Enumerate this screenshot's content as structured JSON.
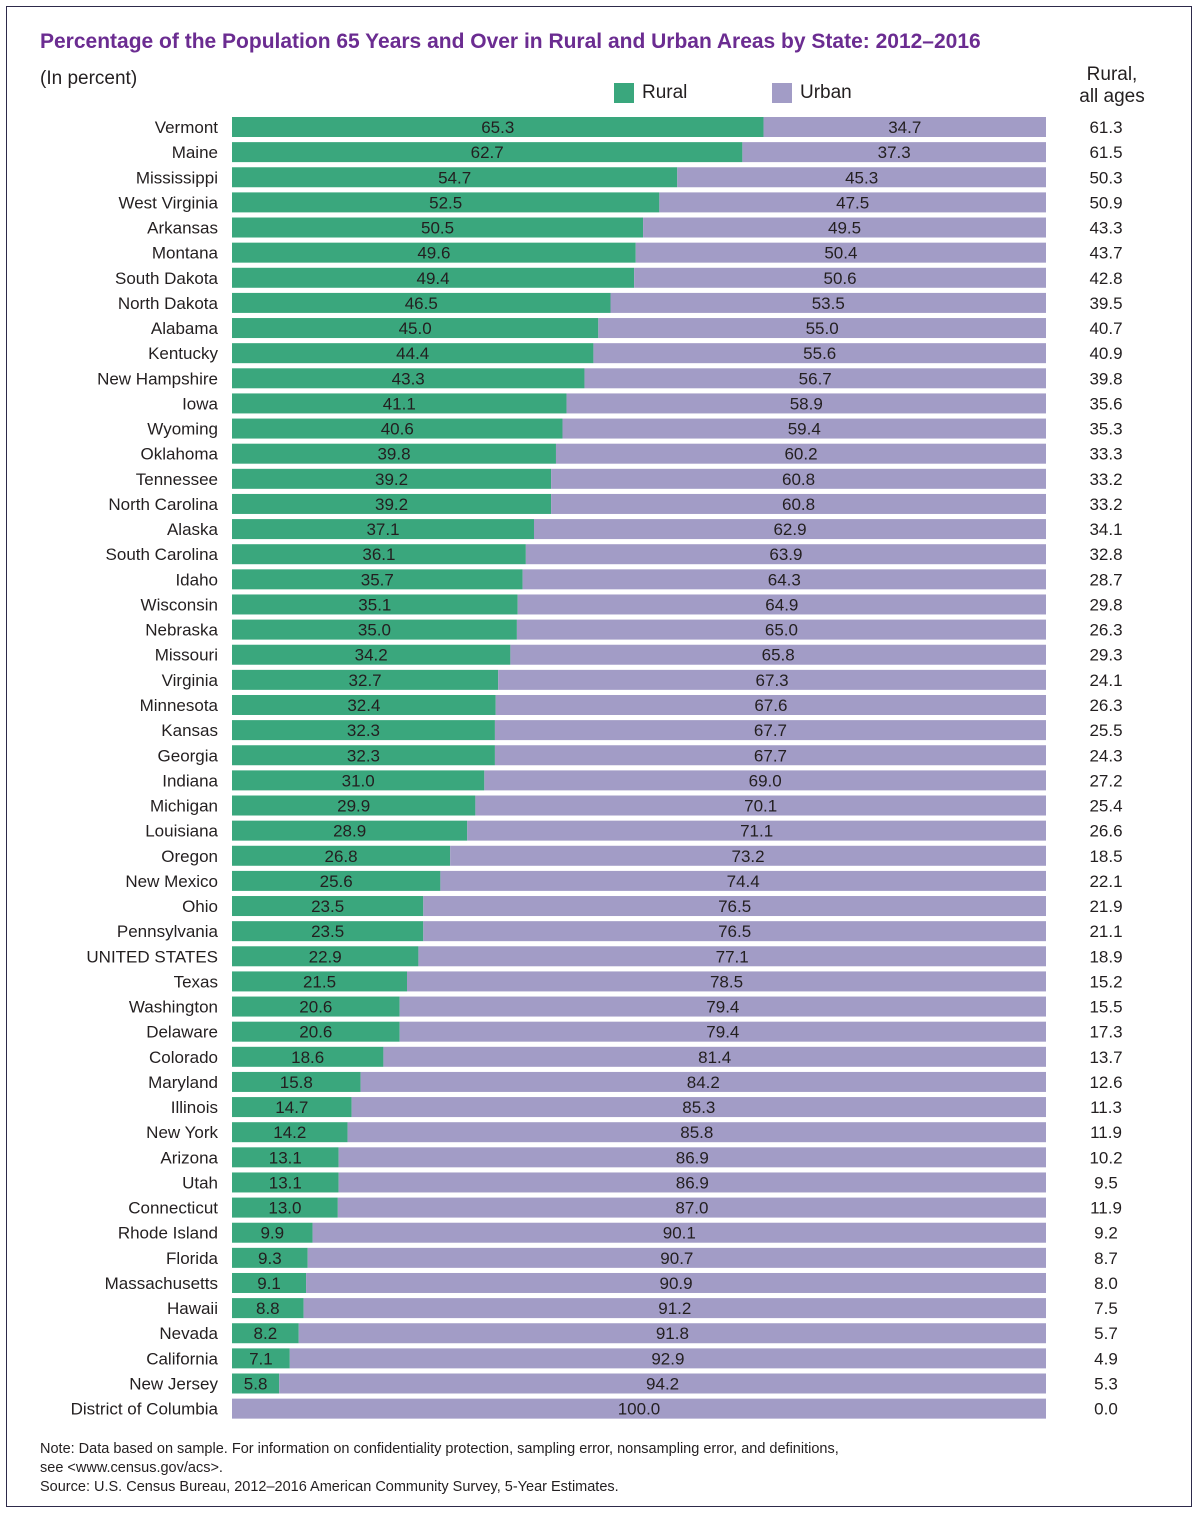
{
  "title": "Percentage of the Population 65 Years and Over in Rural and Urban Areas by State: 2012–2016",
  "subtitle": "(In percent)",
  "legend": {
    "rural_label": "Rural",
    "urban_label": "Urban",
    "rural_color": "#3aa77d",
    "urban_color": "#a29cc6"
  },
  "side_column": {
    "line1": "Rural,",
    "line2": "all ages"
  },
  "note_lines": [
    "Note: Data based on sample. For information on confidentiality protection, sampling error, nonsampling error, and definitions,",
    "see <www.census.gov/acs>.",
    "Source: U.S. Census Bureau, 2012–2016 American Community Survey, 5-Year Estimates."
  ],
  "chart_data": {
    "type": "bar",
    "orientation": "horizontal",
    "stacked": true,
    "xlim": [
      0,
      100
    ],
    "grid": false,
    "legend_placement": "top",
    "categories": [
      "Vermont",
      "Maine",
      "Mississippi",
      "West Virginia",
      "Arkansas",
      "Montana",
      "South Dakota",
      "North Dakota",
      "Alabama",
      "Kentucky",
      "New Hampshire",
      "Iowa",
      "Wyoming",
      "Oklahoma",
      "Tennessee",
      "North Carolina",
      "Alaska",
      "South Carolina",
      "Idaho",
      "Wisconsin",
      "Nebraska",
      "Missouri",
      "Virginia",
      "Minnesota",
      "Kansas",
      "Georgia",
      "Indiana",
      "Michigan",
      "Louisiana",
      "Oregon",
      "New Mexico",
      "Ohio",
      "Pennsylvania",
      "UNITED STATES",
      "Texas",
      "Washington",
      "Delaware",
      "Colorado",
      "Maryland",
      "Illinois",
      "New York",
      "Arizona",
      "Utah",
      "Connecticut",
      "Rhode Island",
      "Florida",
      "Massachusetts",
      "Hawaii",
      "Nevada",
      "California",
      "New Jersey",
      "District of Columbia"
    ],
    "series": [
      {
        "name": "Rural",
        "values": [
          "65.3",
          "62.7",
          "54.7",
          "52.5",
          "50.5",
          "49.6",
          "49.4",
          "46.5",
          "45.0",
          "44.4",
          "43.3",
          "41.1",
          "40.6",
          "39.8",
          "39.2",
          "39.2",
          "37.1",
          "36.1",
          "35.7",
          "35.1",
          "35.0",
          "34.2",
          "32.7",
          "32.4",
          "32.3",
          "32.3",
          "31.0",
          "29.9",
          "28.9",
          "26.8",
          "25.6",
          "23.5",
          "23.5",
          "22.9",
          "21.5",
          "20.6",
          "20.6",
          "18.6",
          "15.8",
          "14.7",
          "14.2",
          "13.1",
          "13.1",
          "13.0",
          "9.9",
          "9.3",
          "9.1",
          "8.8",
          "8.2",
          "7.1",
          "5.8",
          ""
        ]
      },
      {
        "name": "Urban",
        "values": [
          "34.7",
          "37.3",
          "45.3",
          "47.5",
          "49.5",
          "50.4",
          "50.6",
          "53.5",
          "55.0",
          "55.6",
          "56.7",
          "58.9",
          "59.4",
          "60.2",
          "60.8",
          "60.8",
          "62.9",
          "63.9",
          "64.3",
          "64.9",
          "65.0",
          "65.8",
          "67.3",
          "67.6",
          "67.7",
          "67.7",
          "69.0",
          "70.1",
          "71.1",
          "73.2",
          "74.4",
          "76.5",
          "76.5",
          "77.1",
          "78.5",
          "79.4",
          "79.4",
          "81.4",
          "84.2",
          "85.3",
          "85.8",
          "86.9",
          "86.9",
          "87.0",
          "90.1",
          "90.7",
          "90.9",
          "91.2",
          "91.8",
          "92.9",
          "94.2",
          "100.0"
        ]
      }
    ],
    "rural_all_ages": [
      "61.3",
      "61.5",
      "50.3",
      "50.9",
      "43.3",
      "43.7",
      "42.8",
      "39.5",
      "40.7",
      "40.9",
      "39.8",
      "35.6",
      "35.3",
      "33.3",
      "33.2",
      "33.2",
      "34.1",
      "32.8",
      "28.7",
      "29.8",
      "26.3",
      "29.3",
      "24.1",
      "26.3",
      "25.5",
      "24.3",
      "27.2",
      "25.4",
      "26.6",
      "18.5",
      "22.1",
      "21.9",
      "21.1",
      "18.9",
      "15.2",
      "15.5",
      "17.3",
      "13.7",
      "12.6",
      "11.3",
      "11.9",
      "10.2",
      "9.5",
      "11.9",
      "9.2",
      "8.7",
      "8.0",
      "7.5",
      "5.7",
      "4.9",
      "5.3",
      "0.0"
    ]
  }
}
